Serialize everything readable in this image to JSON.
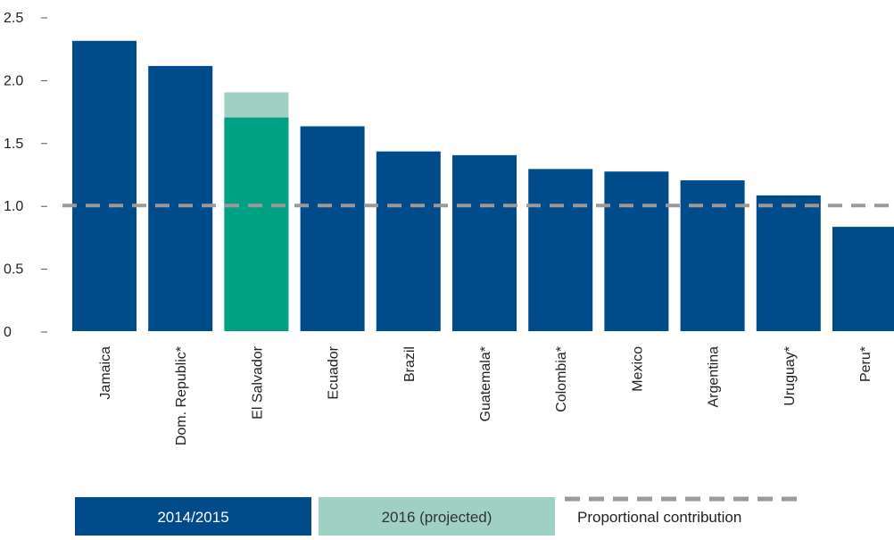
{
  "chart_data": {
    "type": "bar",
    "categories": [
      "Jamaica",
      "Dom. Republic*",
      "El Salvador",
      "Ecuador",
      "Brazil",
      "Guatemala*",
      "Colombia*",
      "Mexico",
      "Argentina",
      "Uruguay*",
      "Peru*"
    ],
    "series": [
      {
        "name": "2014/2015",
        "values": [
          2.31,
          2.11,
          1.7,
          1.63,
          1.43,
          1.4,
          1.29,
          1.27,
          1.2,
          1.08,
          0.83
        ],
        "color": "#004c8a"
      },
      {
        "name": "2016 (projected)",
        "values": [
          null,
          null,
          1.9,
          null,
          null,
          null,
          null,
          null,
          null,
          null,
          null
        ],
        "color": "#9fd0c3"
      }
    ],
    "highlight": {
      "category": "El Salvador",
      "color": "#00a083"
    },
    "reference_line": {
      "name": "Proportional contribution",
      "value": 1.0,
      "color": "#9a9a9a",
      "style": "dashed"
    },
    "yticks": [
      "0",
      "0.5",
      "1.0",
      "1.5",
      "2.0",
      "2.5"
    ],
    "ylim": [
      0,
      2.5
    ],
    "grid": false,
    "legend": {
      "position": "bottom-left"
    },
    "title": "",
    "xlabel": "",
    "ylabel": ""
  }
}
